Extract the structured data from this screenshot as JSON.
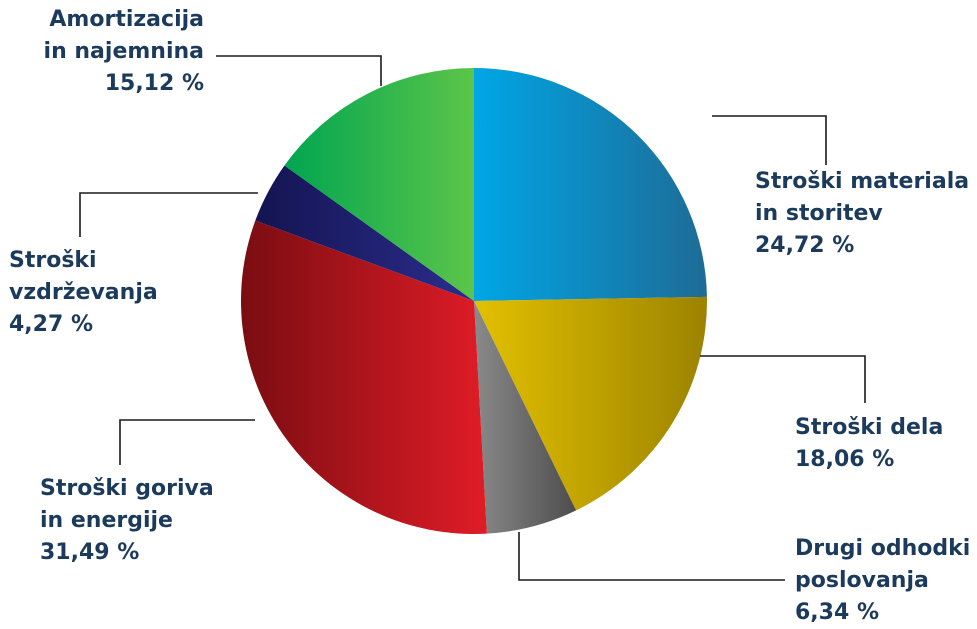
{
  "chart_data": {
    "type": "pie",
    "slices": [
      {
        "key": "materiala",
        "lines": [
          "Stroški materiala",
          "in storitev"
        ],
        "pct_label": "24,72 %",
        "value": 24.72,
        "color_a": "#00a6e6",
        "color_b": "#1e6b96"
      },
      {
        "key": "dela",
        "lines": [
          "Stroški dela"
        ],
        "pct_label": "18,06 %",
        "value": 18.06,
        "color_a": "#e3c000",
        "color_b": "#9c8300"
      },
      {
        "key": "drugi",
        "lines": [
          "Drugi odhodki",
          "poslovanja"
        ],
        "pct_label": "6,34 %",
        "value": 6.34,
        "color_a": "#8a8a8a",
        "color_b": "#4d4d4d"
      },
      {
        "key": "goriva",
        "lines": [
          "Stroški goriva",
          "in energije"
        ],
        "pct_label": "31,49 %",
        "value": 31.49,
        "color_a": "#e01c26",
        "color_b": "#7a0d12"
      },
      {
        "key": "vzdrzevanja",
        "lines": [
          "Stroški",
          "vzdrževanja"
        ],
        "pct_label": "4,27 %",
        "value": 4.27,
        "color_a": "#2b2d8c",
        "color_b": "#141452"
      },
      {
        "key": "amortizacija",
        "lines": [
          "Amortizacija",
          "in najemnina"
        ],
        "pct_label": "15,12 %",
        "value": 15.12,
        "color_a": "#5cc54a",
        "color_b": "#00a550"
      }
    ],
    "legend": "none",
    "colors": {
      "label_text": "#1b3a5c",
      "leader_line": "#1a1a1a"
    }
  }
}
